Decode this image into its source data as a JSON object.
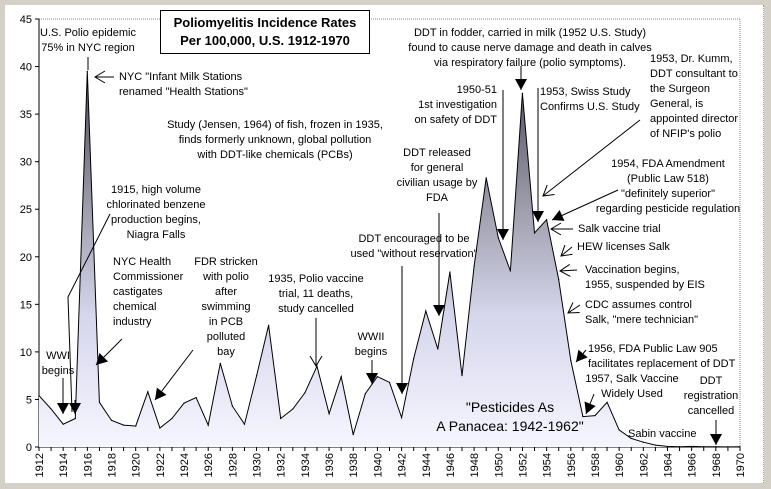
{
  "chart_data": {
    "type": "area",
    "title": [
      "Poliomyelitis Incidence Rates",
      "Per 100,000, U.S. 1912-1970"
    ],
    "xlabel": "",
    "ylabel": "",
    "xlim": [
      1912,
      1970
    ],
    "ylim": [
      0,
      45
    ],
    "y_ticks": [
      "0",
      "5",
      "10",
      "15",
      "20",
      "25",
      "30",
      "35",
      "40",
      "45"
    ],
    "x_ticks": [
      "1912",
      "1914",
      "1916",
      "1918",
      "1920",
      "1922",
      "1924",
      "1926",
      "1928",
      "1930",
      "1932",
      "1934",
      "1936",
      "1938",
      "1940",
      "1942",
      "1944",
      "1946",
      "1948",
      "1950",
      "1952",
      "1954",
      "1956",
      "1958",
      "1960",
      "1962",
      "1964",
      "1966",
      "1968",
      "1970"
    ],
    "x": [
      1912,
      1913,
      1914,
      1915,
      1916,
      1917,
      1918,
      1919,
      1920,
      1921,
      1922,
      1923,
      1924,
      1925,
      1926,
      1927,
      1928,
      1929,
      1930,
      1931,
      1932,
      1933,
      1934,
      1935,
      1936,
      1937,
      1938,
      1939,
      1940,
      1941,
      1942,
      1943,
      1944,
      1945,
      1946,
      1947,
      1948,
      1949,
      1950,
      1951,
      1952,
      1953,
      1954,
      1955,
      1956,
      1957,
      1958,
      1959,
      1960,
      1961,
      1962,
      1963,
      1964,
      1965,
      1966,
      1967,
      1968,
      1969,
      1970
    ],
    "values": [
      5.4,
      4.0,
      2.4,
      3.0,
      39.5,
      4.7,
      2.8,
      2.3,
      2.2,
      5.8,
      2.0,
      3.0,
      4.6,
      5.2,
      2.3,
      8.8,
      4.3,
      2.4,
      7.5,
      12.8,
      3.0,
      4.0,
      5.7,
      8.5,
      3.5,
      7.4,
      1.3,
      5.6,
      7.4,
      6.8,
      3.1,
      9.3,
      14.3,
      10.3,
      18.4,
      7.5,
      19.0,
      28.3,
      22.0,
      18.5,
      37.2,
      22.5,
      23.9,
      17.6,
      9.1,
      3.2,
      3.3,
      4.7,
      1.8,
      0.9,
      0.5,
      0.2,
      0.06,
      0.03,
      0.06,
      0.02,
      0.03,
      0.01,
      0.02
    ],
    "grid": false,
    "legend": "none"
  },
  "annotations": {
    "epidemic": [
      "U.S. Polio epidemic",
      "75% in NYC region"
    ],
    "milk": [
      "NYC \"Infant Milk Stations",
      "renamed \"Health Stations\""
    ],
    "jensen": [
      "Study (Jensen, 1964) of fish, frozen in 1935,",
      "finds formerly unknown, global pollution",
      "with DDT-like chemicals (PCBs)"
    ],
    "benzene": [
      "1915, high volume",
      "chlorinated benzene",
      "production begins,",
      "Niagra Falls"
    ],
    "health_comm": [
      "NYC Health",
      "Commissioner",
      "castigates",
      "chemical",
      "industry"
    ],
    "fdr": [
      "FDR stricken",
      "with polio",
      "after",
      "swimming",
      "in PCB",
      "polluted",
      "bay"
    ],
    "vaccine1935": [
      "1935, Polio vaccine",
      "trial, 11 deaths,",
      "study cancelled"
    ],
    "wwi": [
      "WWI",
      "begins"
    ],
    "wwii": [
      "WWII",
      "begins"
    ],
    "ddt_encouraged": [
      "DDT encouraged to be",
      "used \"without reservation\""
    ],
    "ddt_released": [
      "DDT released",
      "for general",
      "civilian usage by",
      "FDA"
    ],
    "fodder": [
      "DDT in fodder, carried in milk (1952 U.S. Study)",
      "found to cause nerve damage and death in calves",
      "via respiratory failure (polio symptoms)."
    ],
    "investigation": [
      "1950-51",
      "1st investigation",
      "on safety of DDT"
    ],
    "swiss": [
      "1953, Swiss Study",
      "Confirms U.S. Study"
    ],
    "kumm": [
      "1953, Dr. Kumm,",
      "DDT consultant to",
      "the Surgeon",
      "General, is",
      "appointed director",
      "of NFIP's polio"
    ],
    "fda1954": [
      "1954, FDA Amendment",
      "(Public Law 518)",
      "\"definitely superior\"",
      "regarding pesticide regulation"
    ],
    "salk_trial": [
      "Salk vaccine trial"
    ],
    "hew": [
      "HEW licenses Salk"
    ],
    "vaccination": [
      "Vaccination begins,",
      "1955, suspended by EIS"
    ],
    "cdc": [
      "CDC assumes control",
      "Salk, \"mere technician\""
    ],
    "fda1956": [
      "1956, FDA Public Law 905",
      "facilitates replacement of DDT"
    ],
    "salk1957": [
      "1957, Salk Vaccine",
      "Widely Used"
    ],
    "ddt_cancelled": [
      "DDT",
      "registration",
      "cancelled"
    ],
    "panacea": [
      "\"Pesticides As",
      "A Panacea: 1942-1962\""
    ],
    "sabin": [
      "Sabin vaccine"
    ]
  },
  "colors": {
    "area_light": "#f4f4ff",
    "area_mid": "#c8c8dc",
    "area_dark": "#505060",
    "line": "#000000"
  }
}
